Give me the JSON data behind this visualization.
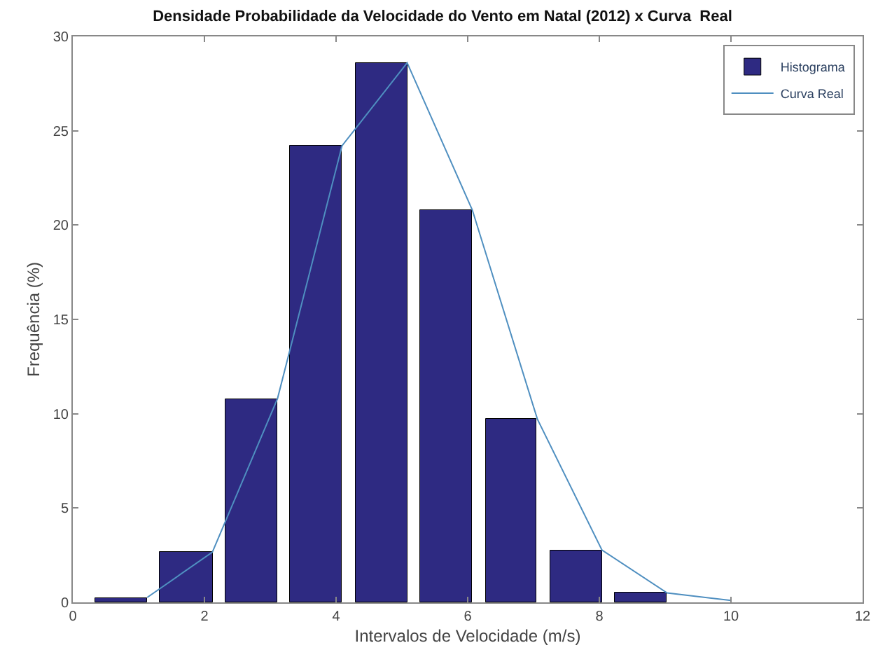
{
  "chart_data": {
    "type": "histogram",
    "title": "Densidade Probabilidade da Velocidade do Vento em Natal (2012) x Curva  Real",
    "xlabel": "Intervalos de Velocidade (m/s)",
    "ylabel": "Frequência (%)",
    "bins": [
      0.25,
      1.23,
      2.22,
      3.21,
      4.19,
      5.18,
      6.17,
      7.15,
      8.14,
      9.13
    ],
    "series": [
      {
        "name": "Histograma",
        "color": "#2e2a82",
        "values": [
          0.26,
          2.66,
          10.8,
          24.2,
          28.6,
          20.8,
          9.7,
          2.77,
          0.5
        ]
      },
      {
        "name": "Curva Real",
        "type": "line",
        "color": "#4f8fc0",
        "x": [
          1.13,
          2.12,
          3.11,
          4.09,
          5.08,
          6.07,
          7.06,
          8.04,
          9.03,
          10.0
        ],
        "values": [
          0.26,
          2.66,
          10.8,
          24.2,
          28.6,
          20.8,
          9.7,
          2.77,
          0.5,
          0.1
        ]
      }
    ],
    "xlim": [
      0,
      12
    ],
    "xticks": [
      0,
      2,
      4,
      6,
      8,
      10,
      12
    ],
    "ylim": [
      0,
      30
    ],
    "yticks": [
      0,
      5,
      10,
      15,
      20,
      25,
      30
    ],
    "legend": "top right"
  }
}
